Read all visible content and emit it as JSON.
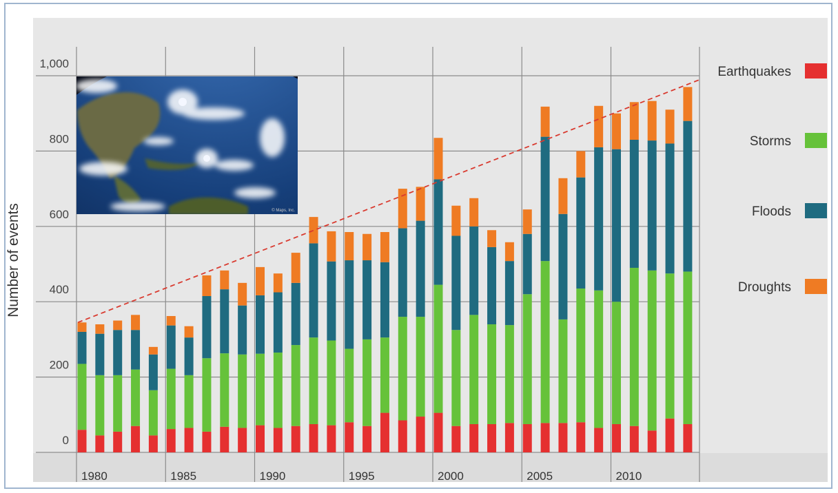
{
  "chart_data": {
    "type": "bar",
    "stacked": true,
    "ylabel": "Number of events",
    "ylim": [
      0,
      1000
    ],
    "yticks": [
      {
        "value": 0,
        "label": "0"
      },
      {
        "value": 200,
        "label": "200"
      },
      {
        "value": 400,
        "label": "400"
      },
      {
        "value": 600,
        "label": "600"
      },
      {
        "value": 800,
        "label": "800"
      },
      {
        "value": 1000,
        "label": "1,000"
      }
    ],
    "categories": [
      1980,
      1981,
      1982,
      1983,
      1984,
      1985,
      1986,
      1987,
      1988,
      1989,
      1990,
      1991,
      1992,
      1993,
      1994,
      1995,
      1996,
      1997,
      1998,
      1999,
      2000,
      2001,
      2002,
      2003,
      2004,
      2005,
      2006,
      2007,
      2008,
      2009,
      2010,
      2011,
      2012,
      2013,
      2014
    ],
    "xticks": [
      {
        "value": 1980,
        "label": "1980"
      },
      {
        "value": 1985,
        "label": "1985"
      },
      {
        "value": 1990,
        "label": "1990"
      },
      {
        "value": 1995,
        "label": "1995"
      },
      {
        "value": 2000,
        "label": "2000"
      },
      {
        "value": 2005,
        "label": "2005"
      },
      {
        "value": 2010,
        "label": "2010"
      }
    ],
    "grid": true,
    "legend_position": "right",
    "series": [
      {
        "name": "Earthquakes",
        "color": "#e53030",
        "values": [
          60,
          45,
          55,
          70,
          45,
          62,
          65,
          55,
          68,
          65,
          72,
          65,
          70,
          75,
          72,
          80,
          70,
          105,
          85,
          95,
          105,
          70,
          75,
          75,
          78,
          75,
          78,
          78,
          80,
          65,
          75,
          70,
          58,
          90,
          75
        ]
      },
      {
        "name": "Storms",
        "color": "#66c23a",
        "values": [
          175,
          160,
          150,
          150,
          120,
          160,
          140,
          195,
          195,
          195,
          190,
          200,
          215,
          230,
          225,
          195,
          230,
          200,
          275,
          265,
          340,
          255,
          290,
          265,
          260,
          345,
          430,
          275,
          355,
          365,
          325,
          420,
          425,
          385,
          405
        ]
      },
      {
        "name": "Floods",
        "color": "#1f6b80",
        "values": [
          85,
          110,
          120,
          105,
          95,
          115,
          100,
          165,
          170,
          130,
          155,
          160,
          165,
          250,
          210,
          235,
          210,
          200,
          235,
          255,
          280,
          250,
          235,
          205,
          170,
          160,
          330,
          280,
          295,
          380,
          405,
          340,
          345,
          345,
          400
        ]
      },
      {
        "name": "Droughts",
        "color": "#ef7b23",
        "values": [
          25,
          25,
          25,
          40,
          20,
          25,
          30,
          55,
          50,
          60,
          75,
          50,
          80,
          70,
          80,
          75,
          70,
          80,
          105,
          90,
          110,
          80,
          75,
          45,
          50,
          65,
          80,
          95,
          70,
          110,
          95,
          100,
          105,
          90,
          90
        ]
      }
    ],
    "trendline": {
      "style": "dashed",
      "color": "#d93a2f",
      "from": [
        1980,
        345
      ],
      "to": [
        2014,
        990
      ]
    }
  },
  "inset_image": {
    "subject": "satellite-hurricane-photo",
    "caption": "© Maps, Inc."
  }
}
